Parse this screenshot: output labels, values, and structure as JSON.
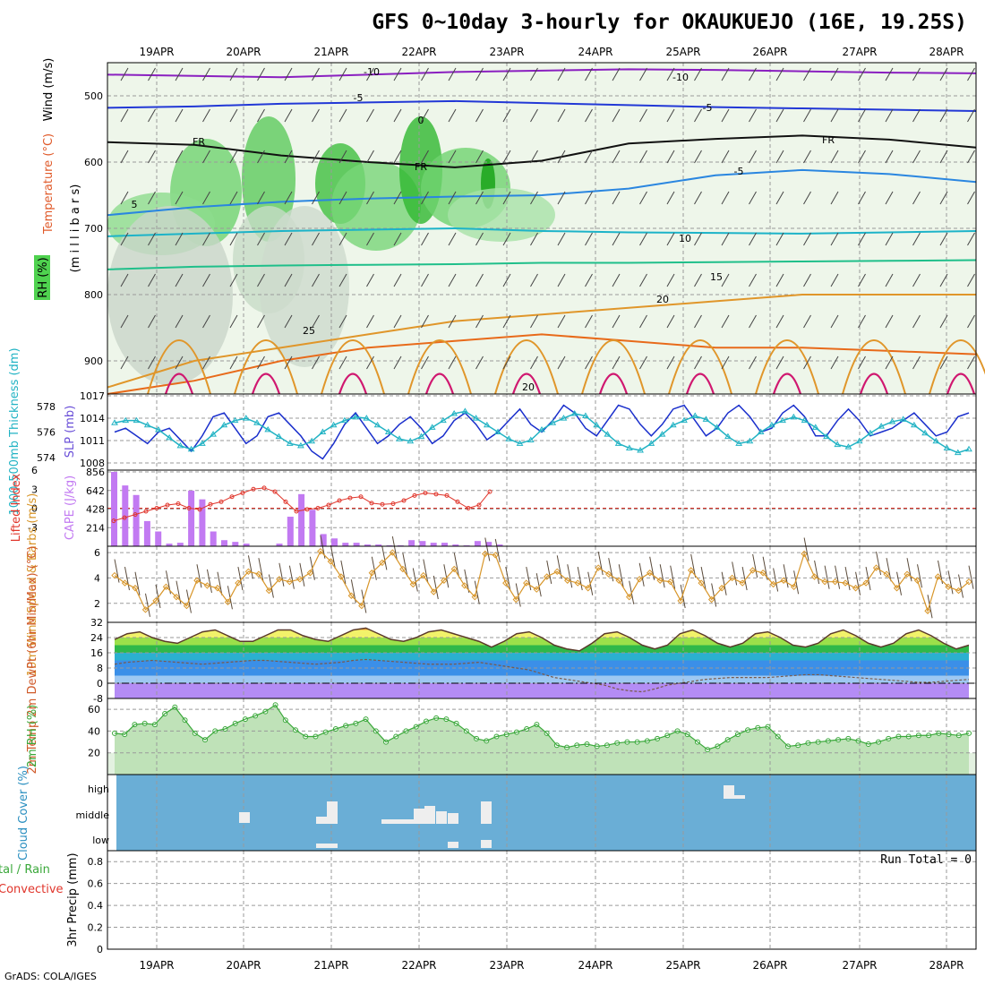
{
  "title": "GFS 0~10day 3-hourly for OKAUKUEJO (16E, 19.25S)",
  "credit": "GrADS: COLA/IGES",
  "run_total": "Run Total = 0",
  "dates": [
    "19APR",
    "20APR",
    "21APR",
    "22APR",
    "23APR",
    "24APR",
    "25APR",
    "26APR",
    "27APR",
    "28APR"
  ],
  "colors": {
    "frame": "#000000",
    "grid": "#9a9a9a",
    "slp": "#1a2fcc",
    "thick": "#22b3c4",
    "cape": "#c27af2",
    "li": "#e0352b",
    "wind": "#d8962a",
    "barb": "#5a4a3a",
    "rh_fill": "#3aa83a",
    "cloud": "#6aaed6",
    "cloud_bar": "#eeeeee"
  },
  "chart_data": [
    {
      "type": "heatmap",
      "name": "pressure-time cross section",
      "ylabel_parts": [
        "Wind (m/s)",
        "Temperature (°C)",
        "(m i l l i b a r s)",
        "RH (%)"
      ],
      "y_ticks": [
        "500",
        "600",
        "700",
        "800",
        "900"
      ],
      "ylim": [
        450,
        950
      ],
      "temp_contours": [
        {
          "label": "-10",
          "color": "#8a1fc0",
          "levels": [
            468,
            470,
            472,
            468,
            464,
            462,
            460,
            461,
            463,
            465,
            466
          ]
        },
        {
          "label": "-5",
          "color": "#2238d6",
          "levels": [
            518,
            516,
            512,
            510,
            508,
            511,
            514,
            517,
            519,
            521,
            523
          ]
        },
        {
          "label": "FR",
          "color": "#111111",
          "levels": [
            570,
            574,
            590,
            600,
            608,
            598,
            572,
            565,
            560,
            566,
            578
          ]
        },
        {
          "label": "5",
          "color": "#2a86e0",
          "levels": [
            680,
            668,
            660,
            655,
            652,
            650,
            640,
            620,
            612,
            618,
            630
          ]
        },
        {
          "label": "10",
          "color": "#1cb3c8",
          "levels": [
            712,
            708,
            704,
            702,
            700,
            704,
            706,
            707,
            708,
            706,
            704
          ]
        },
        {
          "label": "15",
          "color": "#1fbf8a",
          "levels": [
            762,
            758,
            756,
            755,
            754,
            752,
            752,
            751,
            750,
            749,
            748
          ]
        },
        {
          "label": "20",
          "color": "#e0962a",
          "levels": [
            940,
            900,
            880,
            860,
            840,
            830,
            820,
            810,
            800,
            800,
            800
          ]
        },
        {
          "label": "25",
          "color": "#e86a1a",
          "levels": [
            950,
            930,
            900,
            880,
            870,
            860,
            870,
            880,
            880,
            885,
            890
          ]
        }
      ],
      "contour_labels": [
        "-10",
        "-10",
        "-5",
        "-5",
        "0",
        "FR",
        "FR",
        "FR",
        "5",
        "-5",
        "10",
        "15",
        "20",
        "25",
        "20"
      ]
    },
    {
      "type": "line",
      "name": "SLP and thickness",
      "ylabel_left": "1000-500mb Thickness (dm)",
      "ylabel_right": "SLP (mb)",
      "left_ticks": [
        "578",
        "576",
        "574"
      ],
      "right_ticks": [
        "1017",
        "1014",
        "1011",
        "1008"
      ],
      "series": [
        {
          "name": "SLP (mb)",
          "values": [
            1012.5,
            1013,
            1012,
            1011,
            1012.5,
            1013,
            1011.5,
            1010,
            1012,
            1014.5,
            1015,
            1013,
            1011,
            1012,
            1014.5,
            1015,
            1013.5,
            1012,
            1010,
            1009,
            1011,
            1013.5,
            1015,
            1013,
            1011,
            1012,
            1013.5,
            1014.5,
            1013,
            1011,
            1012,
            1014,
            1015,
            1013.5,
            1011.5,
            1012.5,
            1014,
            1015.5,
            1013.5,
            1012.5,
            1014,
            1016,
            1015,
            1013,
            1012,
            1014,
            1016,
            1015.5,
            1013.5,
            1012,
            1013.5,
            1015.5,
            1016,
            1014,
            1012,
            1013,
            1015,
            1016,
            1014.5,
            1012.5,
            1013,
            1015,
            1016,
            1014.5,
            1012,
            1012,
            1014,
            1015.5,
            1014,
            1012,
            1012.5,
            1013,
            1014,
            1015,
            1013.5,
            1012,
            1012.5,
            1014.5,
            1015
          ],
          "ylim": [
            1008,
            1017
          ]
        },
        {
          "name": "Thickness (dm)",
          "values": [
            576.8,
            577,
            577,
            576.6,
            576.2,
            575.5,
            574.8,
            574.5,
            575,
            575.8,
            576.6,
            577,
            577.2,
            576.8,
            576.2,
            575.6,
            575,
            574.8,
            575.2,
            576,
            576.6,
            577,
            577.3,
            577.2,
            576.6,
            576,
            575.4,
            575.2,
            575.6,
            576.4,
            577,
            577.6,
            577.8,
            577.2,
            576.6,
            576,
            575.4,
            575,
            575.3,
            576.2,
            576.8,
            577.2,
            577.6,
            577.4,
            576.6,
            575.8,
            575,
            574.6,
            574.4,
            575,
            575.8,
            576.6,
            577,
            577.4,
            577.1,
            576.4,
            575.6,
            575,
            575.2,
            576,
            576.6,
            577,
            577.3,
            577,
            576.4,
            575.6,
            574.9,
            574.7,
            575.2,
            575.9,
            576.5,
            576.9,
            577.1,
            576.6,
            575.9,
            575.2,
            574.6,
            574.2,
            574.5
          ],
          "ylim": [
            573,
            579
          ]
        }
      ]
    },
    {
      "type": "bar",
      "name": "CAPE and Lifted Index",
      "ylabel_left": "Lifted Index",
      "ylabel_right": "CAPE (J/kg)",
      "left_ticks": [
        "-3",
        "0",
        "3",
        "6"
      ],
      "right_ticks": [
        "856",
        "642",
        "428",
        "214"
      ],
      "cape_values": [
        856,
        700,
        590,
        290,
        170,
        30,
        40,
        640,
        540,
        170,
        70,
        50,
        30,
        0,
        0,
        30,
        340,
        600,
        420,
        140,
        90,
        40,
        40,
        20,
        20,
        10,
        10,
        70,
        60,
        40,
        40,
        20,
        10,
        60,
        50,
        20
      ],
      "li_values": [
        -2,
        -1.5,
        -1,
        -0.5,
        0,
        0.5,
        0.7,
        0,
        -0.2,
        0.6,
        1,
        1.8,
        2.4,
        3,
        3.2,
        2.6,
        1,
        -0.5,
        -0.2,
        0,
        0.5,
        1.2,
        1.6,
        1.8,
        0.8,
        0.6,
        0.7,
        1.2,
        2,
        2.4,
        2.2,
        2,
        1,
        0,
        0.5,
        2.6
      ],
      "ylim_cape": [
        0,
        856
      ],
      "ylim_li": [
        6,
        -6
      ]
    },
    {
      "type": "line",
      "name": "10m wind",
      "ylabel": "10m Wind Speed & Barbs (m/s)",
      "y_ticks": [
        "6",
        "4",
        "2"
      ],
      "values": [
        4.2,
        3.6,
        3.2,
        1.5,
        2.2,
        3.3,
        2.5,
        1.8,
        3.8,
        3.4,
        3.2,
        2.1,
        3.6,
        4.5,
        4.3,
        3,
        3.9,
        3.7,
        3.9,
        4.4,
        6.1,
        5.3,
        4.1,
        2.6,
        1.8,
        4.4,
        5.2,
        6,
        4.7,
        3.5,
        4.2,
        2.9,
        3.8,
        4.7,
        3.4,
        2.5,
        5.9,
        5.8,
        3.6,
        2.3,
        3.6,
        3.1,
        4.1,
        4.5,
        3.8,
        3.6,
        3.2,
        4.8,
        4.3,
        3.8,
        2.5,
        3.9,
        4.4,
        3.8,
        3.7,
        2.2,
        4.6,
        3.6,
        2.3,
        3.2,
        4,
        3.6,
        4.6,
        4.4,
        3.5,
        3.8,
        3.3,
        5.9,
        4.1,
        3.7,
        3.7,
        3.6,
        3.2,
        3.6,
        4.8,
        4.3,
        3.2,
        4.3,
        3.8,
        1.4,
        4.1,
        3.3,
        3,
        3.7
      ],
      "ylim": [
        0.5,
        6.5
      ]
    },
    {
      "type": "area",
      "name": "2m temperature and dewpoint",
      "ylabel": "2m Temp 2m DewPt (6hr Min/Max) (°C)",
      "y_ticks": [
        "32",
        "24",
        "16",
        "8",
        "0",
        "-8"
      ],
      "temp_values": [
        23,
        26,
        27,
        24,
        22,
        21,
        24,
        27,
        28,
        25,
        22,
        22,
        25,
        28,
        28,
        25,
        23,
        22,
        25,
        28,
        29,
        26,
        23,
        22,
        24,
        27,
        28,
        26,
        24,
        22,
        19,
        22,
        26,
        27,
        24,
        20,
        18,
        17,
        21,
        26,
        27,
        24,
        20,
        18,
        20,
        26,
        28,
        25,
        21,
        19,
        21,
        26,
        27,
        24,
        20,
        19,
        21,
        26,
        28,
        25,
        21,
        19,
        21,
        26,
        28,
        25,
        21,
        18,
        20
      ],
      "dewpt_values": [
        10,
        11,
        11.5,
        12,
        11.5,
        11,
        10.5,
        10,
        10.5,
        11,
        11.5,
        12,
        12,
        11.5,
        11,
        10.5,
        10,
        10.5,
        11,
        12,
        12.5,
        12,
        11.5,
        11,
        10.5,
        10,
        10,
        10,
        10.5,
        11,
        10,
        9,
        8,
        7,
        5,
        3,
        2,
        1,
        0,
        -1,
        -3,
        -4,
        -4.5,
        -3,
        -1,
        0,
        1,
        2,
        2.5,
        3,
        3,
        3,
        3,
        3.5,
        4,
        4.5,
        4.5,
        4,
        3.5,
        3,
        2.5,
        2,
        1.5,
        1,
        0.5,
        0.5,
        1,
        1.5,
        2
      ],
      "ylim": [
        -8,
        32
      ]
    },
    {
      "type": "area",
      "name": "2m relative humidity",
      "ylabel": "2m RH (%)",
      "y_ticks": [
        "60",
        "40",
        "20"
      ],
      "values": [
        38,
        37,
        46,
        47,
        46,
        56,
        62,
        50,
        38,
        32,
        40,
        42,
        47,
        51,
        54,
        58,
        64,
        50,
        41,
        35,
        35,
        39,
        42,
        45,
        47,
        51,
        40,
        30,
        35,
        40,
        44,
        49,
        52,
        51,
        47,
        40,
        33,
        31,
        35,
        37,
        39,
        42,
        46,
        38,
        27,
        25,
        27,
        28,
        26,
        27,
        29,
        30,
        30,
        31,
        33,
        36,
        40,
        37,
        30,
        23,
        26,
        32,
        37,
        41,
        43,
        44,
        35,
        26,
        27,
        29,
        30,
        31,
        32,
        33,
        31,
        28,
        30,
        33,
        35,
        35,
        36,
        36,
        38,
        37,
        36,
        38
      ],
      "ylim": [
        0,
        70
      ]
    },
    {
      "type": "bar",
      "name": "cloud cover",
      "ylabel": "Cloud Cover (%)",
      "y_ticks": [
        "high",
        "middle",
        "low"
      ]
    },
    {
      "type": "line",
      "name": "3hr precipitation",
      "ylabel_parts": [
        "tal / Rain",
        "Convective",
        "3hr Precip (mm)"
      ],
      "y_ticks": [
        "0.8",
        "0.6",
        "0.4",
        "0.2",
        "0"
      ],
      "values": [],
      "ylim": [
        0,
        0.9
      ]
    }
  ]
}
